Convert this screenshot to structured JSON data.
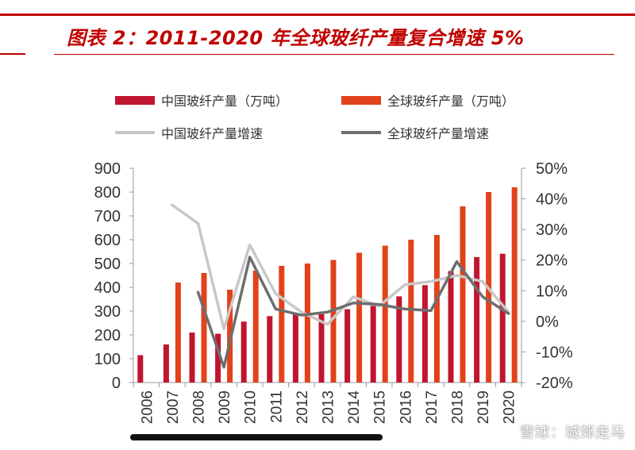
{
  "title": "图表 2：2011-2020 年全球玻纤产量复合增速 5%",
  "watermark": "雪球：城郊走马",
  "chart_data": {
    "type": "bar",
    "categories": [
      "2006",
      "2007",
      "2008",
      "2009",
      "2010",
      "2011",
      "2012",
      "2013",
      "2014",
      "2015",
      "2016",
      "2017",
      "2018",
      "2019",
      "2020"
    ],
    "series": [
      {
        "name": "中国玻纤产量（万吨）",
        "kind": "bar",
        "axis": "left",
        "color": "#c0152f",
        "values": [
          115,
          160,
          210,
          205,
          256,
          279,
          288,
          287,
          308,
          322,
          362,
          409,
          468,
          527,
          541
        ]
      },
      {
        "name": "全球玻纤产量（万吨）",
        "kind": "bar",
        "axis": "left",
        "color": "#e2421b",
        "values": [
          null,
          420,
          460,
          390,
          470,
          490,
          500,
          515,
          545,
          575,
          600,
          620,
          740,
          800,
          820
        ]
      },
      {
        "name": "中国玻纤产量增速",
        "kind": "line",
        "axis": "right",
        "color": "#c8c8c8",
        "values": [
          null,
          0.38,
          0.32,
          -0.025,
          0.25,
          0.09,
          0.03,
          -0.01,
          0.08,
          0.05,
          0.12,
          0.13,
          0.15,
          0.13,
          0.03
        ]
      },
      {
        "name": "全球玻纤产量增速",
        "kind": "line",
        "axis": "right",
        "color": "#6e6e6e",
        "values": [
          null,
          null,
          0.095,
          -0.15,
          0.21,
          0.04,
          0.02,
          0.03,
          0.06,
          0.055,
          0.04,
          0.035,
          0.195,
          0.08,
          0.025
        ]
      }
    ],
    "ylim_left": [
      0,
      900
    ],
    "yticks_left": [
      "900",
      "800",
      "700",
      "600",
      "500",
      "400",
      "300",
      "200",
      "100",
      "0"
    ],
    "ylim_right": [
      -0.2,
      0.5
    ],
    "yticks_right": [
      "50%",
      "40%",
      "30%",
      "20%",
      "10%",
      "0%",
      "-10%",
      "-20%"
    ],
    "legend_position": "top",
    "grid": false
  }
}
